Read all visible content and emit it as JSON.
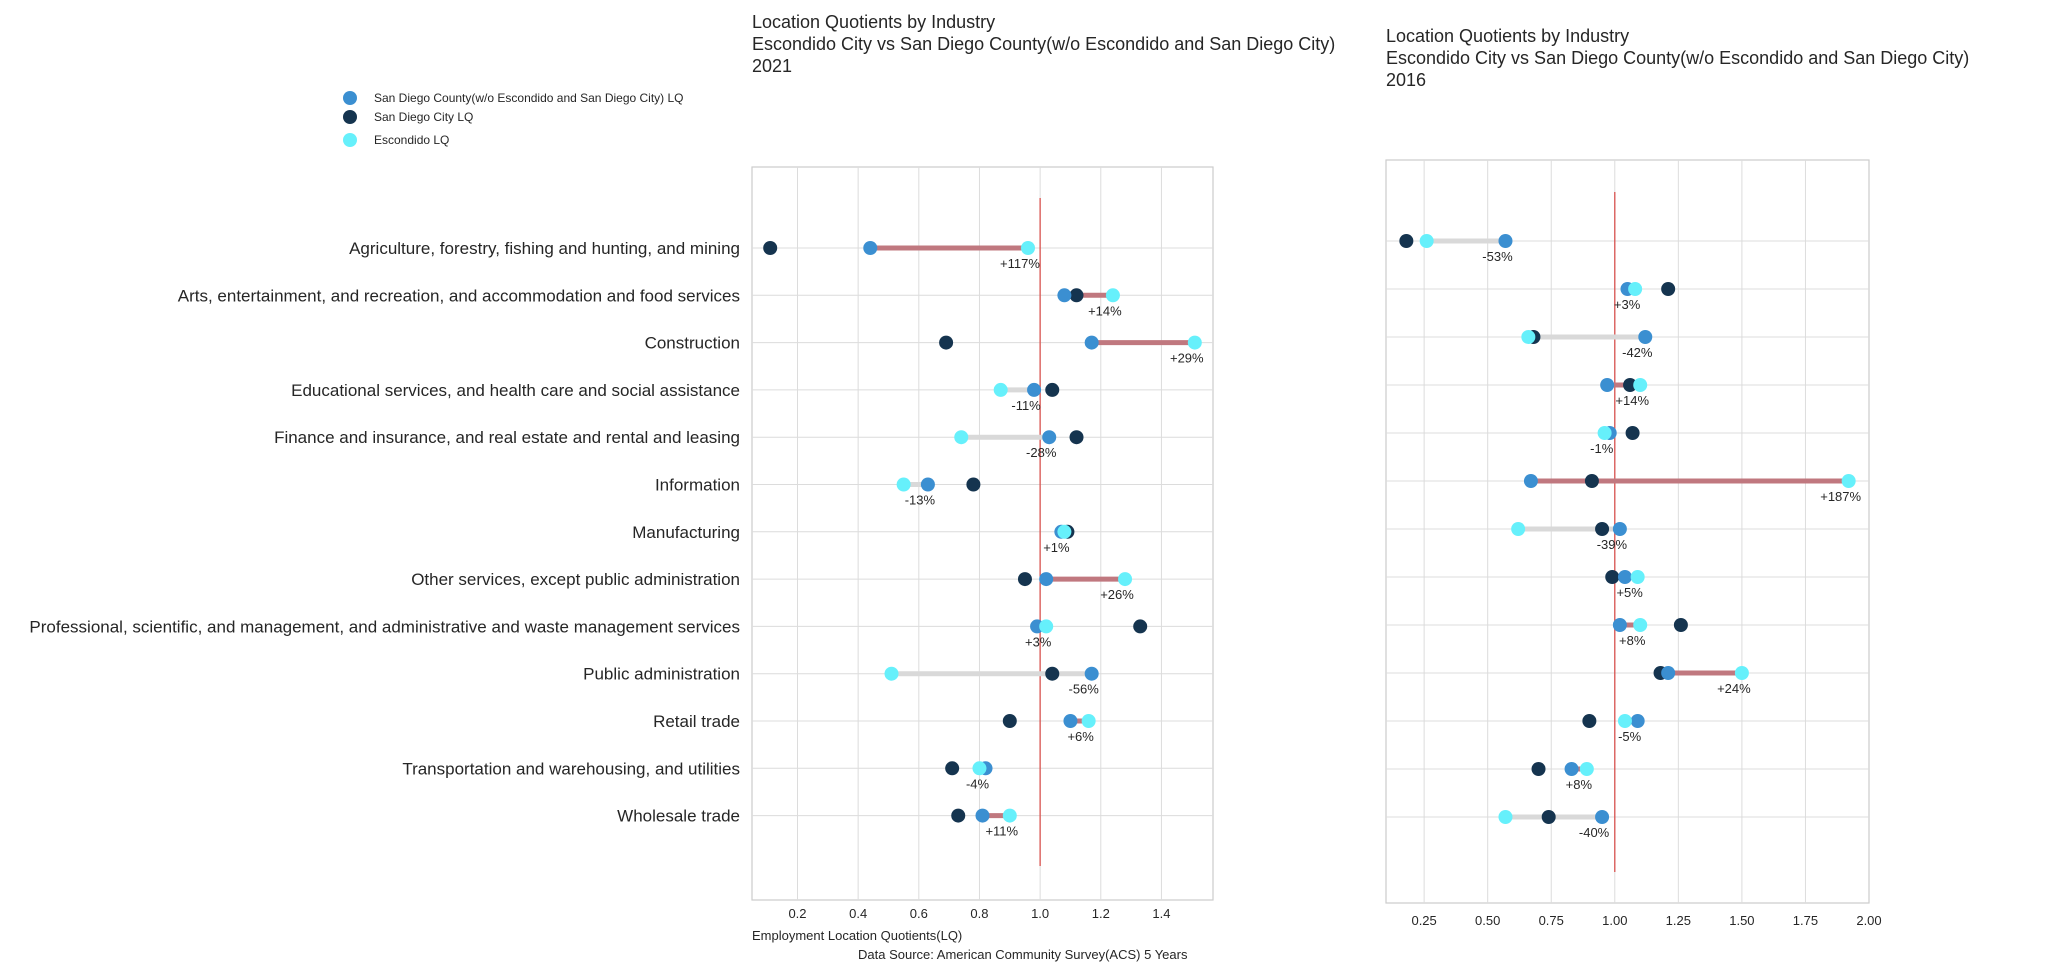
{
  "legend": {
    "entries": [
      {
        "label": "San Diego County(w/o Escondido and San Diego City) LQ",
        "color": "#3b8fd1"
      },
      {
        "label": "San Diego City LQ",
        "color": "#15344f"
      },
      {
        "label": "Escondido LQ",
        "color": "#66f0fb"
      }
    ]
  },
  "source": "Data Source: American Community Survey(ACS) 5 Years",
  "colors": {
    "county": "#3b8fd1",
    "city": "#15344f",
    "escondido": "#66f0fb",
    "positive_bar": "#c0787f",
    "negative_bar": "#d9d9d9",
    "ref_line": "#d9534f"
  },
  "chart_data": [
    {
      "type": "dumbbell",
      "title": [
        "Location Quotients by Industry",
        "Escondido City vs San Diego County(w/o Escondido and San Diego City)",
        "2021"
      ],
      "xlabel": "Employment Location Quotients(LQ)",
      "xlim": [
        0.05,
        1.57
      ],
      "xticks": [
        0.2,
        0.4,
        0.6,
        0.8,
        1.0,
        1.2,
        1.4
      ],
      "tick_labels": [
        "0.2",
        "0.4",
        "0.6",
        "0.8",
        "1.0",
        "1.2",
        "1.4"
      ],
      "reference_line": 1.0,
      "categories": [
        "Agriculture, forestry, fishing and hunting, and mining",
        "Arts, entertainment, and recreation, and accommodation and food services",
        "Construction",
        "Educational services, and health care and social assistance",
        "Finance and insurance, and real estate and rental and leasing",
        "Information",
        "Manufacturing",
        "Other services, except public administration",
        "Professional, scientific, and management, and administrative and waste management services",
        "Public administration",
        "Retail trade",
        "Transportation and warehousing, and utilities",
        "Wholesale trade"
      ],
      "series": [
        {
          "name": "San Diego County(w/o Escondido and San Diego City) LQ",
          "values": [
            0.44,
            1.08,
            1.17,
            0.98,
            1.03,
            0.63,
            1.07,
            1.02,
            0.99,
            1.17,
            1.1,
            0.82,
            0.81
          ]
        },
        {
          "name": "San Diego City LQ",
          "values": [
            0.11,
            1.12,
            0.69,
            1.04,
            1.12,
            0.78,
            1.09,
            0.95,
            1.33,
            1.04,
            0.9,
            0.71,
            0.73
          ]
        },
        {
          "name": "Escondido LQ",
          "values": [
            0.96,
            1.24,
            1.51,
            0.87,
            0.74,
            0.55,
            1.08,
            1.28,
            1.02,
            0.51,
            1.16,
            0.8,
            0.9
          ]
        }
      ],
      "pct_labels": [
        "+117%",
        "+14%",
        "+29%",
        "-11%",
        "-28%",
        "-13%",
        "+1%",
        "+26%",
        "+3%",
        "-56%",
        "+6%",
        "-4%",
        "+11%"
      ]
    },
    {
      "type": "dumbbell",
      "title": [
        "Location Quotients by Industry",
        "Escondido City vs San Diego County(w/o Escondido and San Diego City)",
        "2016"
      ],
      "xlabel": "",
      "xlim": [
        0.1,
        2.0
      ],
      "xticks": [
        0.25,
        0.5,
        0.75,
        1.0,
        1.25,
        1.5,
        1.75,
        2.0
      ],
      "tick_labels": [
        "0.25",
        "0.50",
        "0.75",
        "1.00",
        "1.25",
        "1.50",
        "1.75",
        "2.00"
      ],
      "reference_line": 1.0,
      "series": [
        {
          "name": "San Diego County(w/o Escondido and San Diego City) LQ",
          "values": [
            0.57,
            1.05,
            1.12,
            0.97,
            0.98,
            0.67,
            1.02,
            1.04,
            1.02,
            1.21,
            1.09,
            0.83,
            0.95
          ]
        },
        {
          "name": "San Diego City LQ",
          "values": [
            0.18,
            1.21,
            0.68,
            1.06,
            1.07,
            0.91,
            0.95,
            0.99,
            1.26,
            1.18,
            0.9,
            0.7,
            0.74
          ]
        },
        {
          "name": "Escondido LQ",
          "values": [
            0.26,
            1.08,
            0.66,
            1.1,
            0.96,
            1.92,
            0.62,
            1.09,
            1.1,
            1.5,
            1.04,
            0.89,
            0.57
          ]
        }
      ],
      "pct_labels": [
        "-53%",
        "+3%",
        "-42%",
        "+14%",
        "-1%",
        "+187%",
        "-39%",
        "+5%",
        "+8%",
        "+24%",
        "-5%",
        "+8%",
        "-40%"
      ]
    }
  ]
}
